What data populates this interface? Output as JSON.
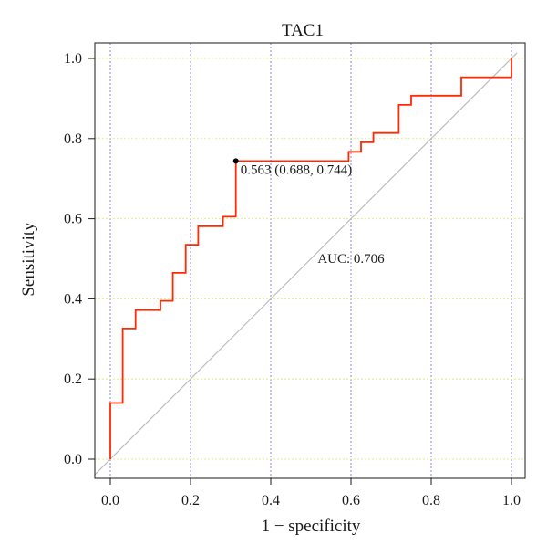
{
  "chart_data": {
    "type": "line",
    "title": "TAC1",
    "xlabel": "1 − specificity",
    "ylabel": "Sensitivity",
    "xlim": [
      0,
      1
    ],
    "ylim": [
      0,
      1
    ],
    "x_ticks": [
      "0.0",
      "0.2",
      "0.4",
      "0.6",
      "0.8",
      "1.0"
    ],
    "y_ticks": [
      "0.0",
      "0.2",
      "0.4",
      "0.6",
      "0.8",
      "1.0"
    ],
    "grid": true,
    "series": [
      {
        "color": "#ff2a00",
        "points": [
          [
            0.0,
            0.0
          ],
          [
            0.0,
            0.14
          ],
          [
            0.031,
            0.14
          ],
          [
            0.031,
            0.326
          ],
          [
            0.063,
            0.326
          ],
          [
            0.063,
            0.372
          ],
          [
            0.125,
            0.372
          ],
          [
            0.125,
            0.395
          ],
          [
            0.156,
            0.395
          ],
          [
            0.156,
            0.465
          ],
          [
            0.188,
            0.465
          ],
          [
            0.188,
            0.535
          ],
          [
            0.219,
            0.535
          ],
          [
            0.219,
            0.581
          ],
          [
            0.281,
            0.581
          ],
          [
            0.281,
            0.605
          ],
          [
            0.313,
            0.605
          ],
          [
            0.313,
            0.744
          ],
          [
            0.594,
            0.744
          ],
          [
            0.594,
            0.767
          ],
          [
            0.625,
            0.767
          ],
          [
            0.625,
            0.791
          ],
          [
            0.656,
            0.791
          ],
          [
            0.656,
            0.814
          ],
          [
            0.719,
            0.814
          ],
          [
            0.719,
            0.884
          ],
          [
            0.75,
            0.884
          ],
          [
            0.75,
            0.907
          ],
          [
            0.875,
            0.907
          ],
          [
            0.875,
            0.953
          ],
          [
            1.0,
            0.953
          ],
          [
            1.0,
            1.0
          ]
        ]
      }
    ],
    "reference_line": {
      "from": [
        0,
        0
      ],
      "to": [
        1,
        1
      ],
      "color": "#bdbdbd"
    },
    "threshold_point": {
      "x": 0.313,
      "y": 0.744,
      "label": "0.563 (0.688, 0.744)"
    },
    "auc_label": {
      "text": "AUC: 0.706",
      "color": "#ff2a00",
      "x": 0.5,
      "y": 0.49
    }
  }
}
